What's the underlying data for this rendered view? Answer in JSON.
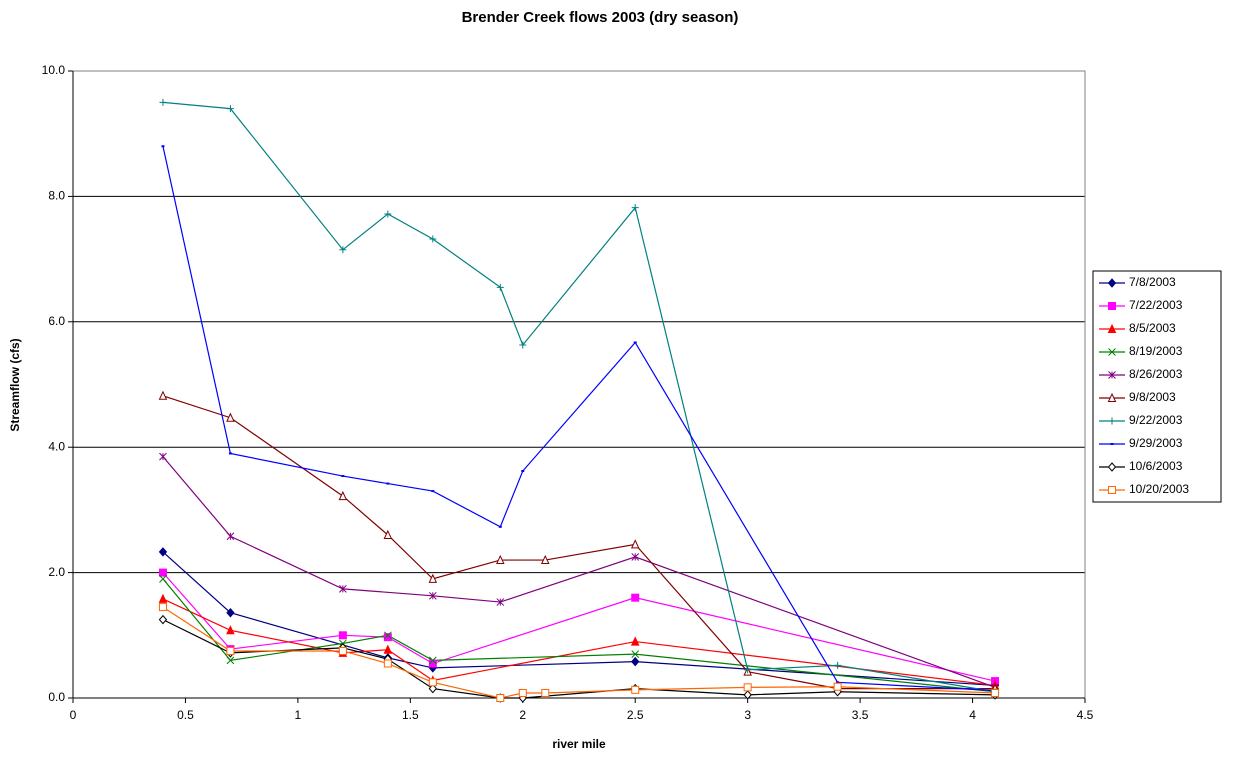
{
  "chart_data": {
    "type": "line",
    "title": "Brender Creek flows 2003 (dry season)",
    "x_label": "river mile",
    "y_label": "Streamflow (cfs)",
    "xlim": [
      0,
      4.5
    ],
    "xticks": [
      0,
      0.5,
      1,
      1.5,
      2,
      2.5,
      3,
      3.5,
      4,
      4.5
    ],
    "ylim": [
      0,
      10
    ],
    "yticks": [
      {
        "value": 0,
        "label": "0.0"
      },
      {
        "value": 2,
        "label": "2.0"
      },
      {
        "value": 4,
        "label": "4.0"
      },
      {
        "value": 6,
        "label": "6.0"
      },
      {
        "value": 8,
        "label": "8.0"
      },
      {
        "value": 10,
        "label": "10.0"
      }
    ],
    "grid": true,
    "legend": "right",
    "series": [
      {
        "name": "7/8/2003",
        "color": "#000080",
        "marker": "diamond",
        "x": [
          0.4,
          0.7,
          1.4,
          1.6,
          2.5,
          4.1
        ],
        "values": [
          2.33,
          1.36,
          0.64,
          0.48,
          0.58,
          0.2
        ]
      },
      {
        "name": "7/22/2003",
        "color": "#ff00ff",
        "marker": "square",
        "x": [
          0.4,
          0.7,
          1.2,
          1.4,
          1.6,
          2.5,
          4.1
        ],
        "values": [
          2.0,
          0.78,
          1.0,
          0.97,
          0.55,
          1.6,
          0.27
        ]
      },
      {
        "name": "8/5/2003",
        "color": "#ff0000",
        "marker": "triangle",
        "x": [
          0.4,
          0.7,
          1.2,
          1.4,
          1.6,
          2.5,
          4.1
        ],
        "values": [
          1.58,
          1.08,
          0.72,
          0.77,
          0.28,
          0.9,
          0.2
        ]
      },
      {
        "name": "8/19/2003",
        "color": "#008000",
        "marker": "x",
        "x": [
          0.4,
          0.7,
          1.2,
          1.4,
          1.6,
          2.5,
          4.1
        ],
        "values": [
          1.9,
          0.6,
          0.87,
          1.0,
          0.6,
          0.7,
          0.1
        ]
      },
      {
        "name": "8/26/2003",
        "color": "#800080",
        "marker": "asterisk",
        "x": [
          0.4,
          0.7,
          1.2,
          1.6,
          1.9,
          2.5,
          4.1
        ],
        "values": [
          3.85,
          2.58,
          1.74,
          1.63,
          1.53,
          2.25,
          0.17
        ]
      },
      {
        "name": "9/8/2003",
        "color": "#800000",
        "marker": "open-triangle",
        "x": [
          0.4,
          0.7,
          1.2,
          1.4,
          1.6,
          1.9,
          2.1,
          2.5,
          3.0,
          3.4,
          4.1
        ],
        "values": [
          4.82,
          4.47,
          3.22,
          2.6,
          1.9,
          2.2,
          2.2,
          2.45,
          0.42,
          0.15,
          0.15
        ]
      },
      {
        "name": "9/22/2003",
        "color": "#008080",
        "marker": "plus",
        "x": [
          0.4,
          0.7,
          1.2,
          1.4,
          1.6,
          1.9,
          2.0,
          2.5,
          3.0,
          3.4,
          4.1
        ],
        "values": [
          9.5,
          9.4,
          7.15,
          7.72,
          7.32,
          6.55,
          5.63,
          7.82,
          0.45,
          0.52,
          0.1
        ]
      },
      {
        "name": "9/29/2003",
        "color": "#0000ff",
        "marker": "dash",
        "x": [
          0.4,
          0.7,
          1.2,
          1.4,
          1.6,
          1.9,
          2.0,
          2.5,
          3.4,
          4.1
        ],
        "values": [
          8.8,
          3.9,
          3.54,
          3.42,
          3.3,
          2.73,
          3.62,
          5.67,
          0.25,
          0.12
        ]
      },
      {
        "name": "10/6/2003",
        "color": "#000000",
        "marker": "open-diamond",
        "x": [
          0.4,
          0.7,
          1.2,
          1.4,
          1.6,
          1.9,
          2.0,
          2.5,
          3.0,
          3.4,
          4.1
        ],
        "values": [
          1.25,
          0.72,
          0.8,
          0.62,
          0.15,
          0.0,
          0.0,
          0.15,
          0.05,
          0.1,
          0.05
        ]
      },
      {
        "name": "10/20/2003",
        "color": "#ff6600",
        "marker": "open-square",
        "x": [
          0.4,
          0.7,
          1.2,
          1.4,
          1.6,
          1.9,
          2.0,
          2.1,
          2.5,
          3.0,
          3.4,
          4.1
        ],
        "values": [
          1.45,
          0.75,
          0.75,
          0.55,
          0.25,
          0.0,
          0.08,
          0.08,
          0.13,
          0.17,
          0.18,
          0.08
        ]
      }
    ]
  }
}
